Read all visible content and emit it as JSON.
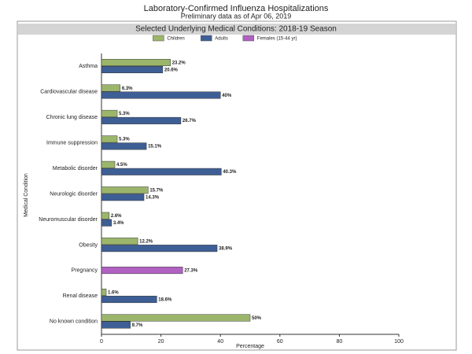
{
  "chart_data": {
    "type": "bar",
    "orientation": "horizontal",
    "title": "Laboratory-Confirmed Influenza Hospitalizations",
    "subtitle": "Preliminary data as of Apr 06, 2019",
    "panel_title": "Selected Underlying Medical Conditions: 2018-19 Season",
    "x_label": "Percentage",
    "y_label": "Medical Condition",
    "categories": [
      "Asthma",
      "Cardiovascular disease",
      "Chronic lung disease",
      "Immune suppression",
      "Metabolic disorder",
      "Neurologic disorder",
      "Neuromuscular disorder",
      "Obesity",
      "Pregnancy",
      "Renal disease",
      "No known condition"
    ],
    "series": [
      {
        "name": "Children",
        "color": "#9bb66b",
        "values": [
          23.2,
          6.3,
          5.3,
          5.3,
          4.5,
          15.7,
          2.6,
          12.2,
          null,
          1.6,
          50
        ],
        "value_labels": [
          "23.2%",
          "6.3%",
          "5.3%",
          "5.3%",
          "4.5%",
          "15.7%",
          "2.6%",
          "12.2%",
          null,
          "1.6%",
          "50%"
        ]
      },
      {
        "name": "Adults",
        "color": "#3e5f95",
        "values": [
          20.6,
          40,
          26.7,
          15.1,
          40.3,
          14.3,
          3.4,
          38.9,
          null,
          18.6,
          9.7
        ],
        "value_labels": [
          "20.6%",
          "40%",
          "26.7%",
          "15.1%",
          "40.3%",
          "14.3%",
          "3.4%",
          "38.9%",
          null,
          "18.6%",
          "9.7%"
        ]
      },
      {
        "name": "Females (15-44 yr)",
        "color": "#b061c1",
        "values": [
          null,
          null,
          null,
          null,
          null,
          null,
          null,
          null,
          27.3,
          null,
          null
        ],
        "value_labels": [
          null,
          null,
          null,
          null,
          null,
          null,
          null,
          null,
          "27.3%",
          null,
          null
        ]
      }
    ],
    "xlim": [
      0,
      100
    ],
    "xticks": [
      0,
      20,
      40,
      60,
      80,
      100
    ],
    "grid": false,
    "legend": "top"
  }
}
